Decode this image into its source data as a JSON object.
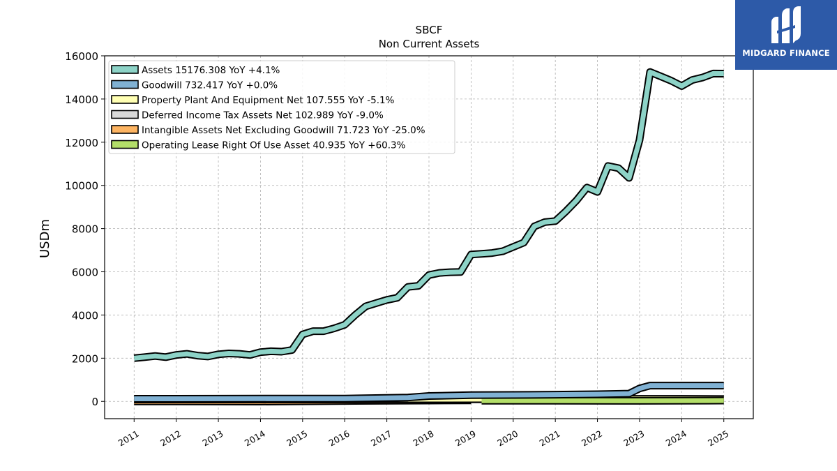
{
  "chart_data": {
    "type": "line",
    "title": "SBCF",
    "subtitle": "Non Current  Assets",
    "xlabel": "",
    "ylabel": "USDm",
    "ylim": [
      -800,
      16000
    ],
    "xlim": [
      2010.3,
      2025.7
    ],
    "yticks": [
      0,
      2000,
      4000,
      6000,
      8000,
      10000,
      12000,
      14000,
      16000
    ],
    "xticks": [
      "2011",
      "2012",
      "2013",
      "2014",
      "2015",
      "2016",
      "2017",
      "2018",
      "2019",
      "2020",
      "2021",
      "2022",
      "2023",
      "2024",
      "2025"
    ],
    "grid": true,
    "legend_position": "top-left",
    "series": [
      {
        "name": "Assets  15176.308 YoY +4.1%",
        "color": "#8dd3c7",
        "x": [
          2011.0,
          2011.25,
          2011.5,
          2011.75,
          2012.0,
          2012.25,
          2012.5,
          2012.75,
          2013.0,
          2013.25,
          2013.5,
          2013.75,
          2014.0,
          2014.25,
          2014.5,
          2014.75,
          2015.0,
          2015.25,
          2015.5,
          2015.75,
          2016.0,
          2016.25,
          2016.5,
          2016.75,
          2017.0,
          2017.25,
          2017.5,
          2017.75,
          2018.0,
          2018.25,
          2018.5,
          2018.75,
          2019.0,
          2019.25,
          2019.5,
          2019.75,
          2020.0,
          2020.25,
          2020.5,
          2020.75,
          2021.0,
          2021.25,
          2021.5,
          2021.75,
          2022.0,
          2022.25,
          2022.5,
          2022.75,
          2023.0,
          2023.25,
          2023.5,
          2023.75,
          2024.0,
          2024.25,
          2024.5,
          2024.75,
          2025.0
        ],
        "values": [
          2000,
          2050,
          2100,
          2050,
          2150,
          2200,
          2120,
          2080,
          2180,
          2220,
          2200,
          2150,
          2280,
          2320,
          2300,
          2380,
          3100,
          3250,
          3250,
          3380,
          3550,
          4000,
          4400,
          4550,
          4700,
          4800,
          5300,
          5350,
          5850,
          5950,
          5980,
          5990,
          6800,
          6830,
          6870,
          6950,
          7150,
          7350,
          8100,
          8300,
          8350,
          8800,
          9300,
          9900,
          9700,
          10900,
          10800,
          10350,
          12100,
          15250,
          15050,
          14850,
          14600,
          14880,
          15000,
          15180,
          15176
        ]
      },
      {
        "name": "Goodwill  732.417 YoY +0.0%",
        "color": "#80b1d3",
        "x": [
          2011.0,
          2016.0,
          2017.5,
          2018.0,
          2019.0,
          2020.0,
          2021.0,
          2022.0,
          2022.75,
          2023.0,
          2023.25,
          2024.0,
          2025.0
        ],
        "values": [
          120,
          130,
          180,
          250,
          290,
          300,
          310,
          330,
          360,
          600,
          730,
          732,
          732
        ]
      },
      {
        "name": "Property Plant And Equipment Net  107.555 YoY -5.1%",
        "color": "#ffffb3",
        "x": [
          2011.0,
          2015.0,
          2018.0,
          2020.0,
          2022.0,
          2023.0,
          2024.0,
          2025.0
        ],
        "values": [
          100,
          102,
          105,
          108,
          112,
          113,
          113,
          108
        ]
      },
      {
        "name": "Deferred Income Tax Assets Net  102.989 YoY -9.0%",
        "color": "#d9d9d9",
        "x": [
          2011.0,
          2014.0,
          2017.0,
          2020.0,
          2022.0,
          2023.0,
          2024.0,
          2025.0
        ],
        "values": [
          90,
          85,
          95,
          100,
          110,
          115,
          113,
          103
        ]
      },
      {
        "name": "Intangible Assets Net Excluding Goodwill  71.723 YoY -25.0%",
        "color": "#fdb462",
        "x": [
          2011.0,
          2014.0,
          2016.0,
          2018.0,
          2019.0
        ],
        "values": [
          0,
          -10,
          20,
          40,
          50
        ]
      },
      {
        "name": "Operating Lease Right Of Use Asset  40.935 YoY +60.3%",
        "color": "#b3de69",
        "x": [
          2019.25,
          2021.0,
          2023.0,
          2025.0
        ],
        "values": [
          35,
          30,
          28,
          41
        ]
      }
    ]
  },
  "logo": {
    "text": "MIDGARD FINANCE",
    "background": "#2d5aa8"
  }
}
